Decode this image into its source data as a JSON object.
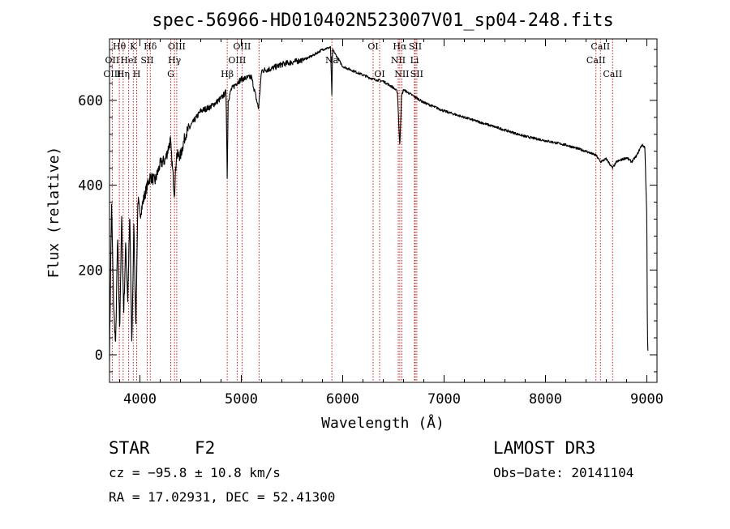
{
  "chart_data": {
    "type": "line",
    "title": "spec-56966-HD010402N523007V01_sp04-248.fits",
    "xlabel": "Wavelength (Å)",
    "ylabel": "Flux (relative)",
    "xlim": [
      3700,
      9100
    ],
    "ylim": [
      -65,
      745
    ],
    "xticks": [
      "4000",
      "5000",
      "6000",
      "7000",
      "8000",
      "9000"
    ],
    "xtick_values": [
      4000,
      5000,
      6000,
      7000,
      8000,
      9000
    ],
    "yticks": [
      "0",
      "200",
      "400",
      "600"
    ],
    "ytick_values": [
      0,
      200,
      400,
      600
    ],
    "series": [
      {
        "name": "flux",
        "x": [
          3700,
          3720,
          3740,
          3760,
          3780,
          3800,
          3820,
          3840,
          3860,
          3880,
          3900,
          3920,
          3940,
          3960,
          3980,
          4000,
          4050,
          4100,
          4150,
          4200,
          4250,
          4300,
          4340,
          4360,
          4400,
          4450,
          4500,
          4600,
          4700,
          4800,
          4850,
          4861,
          4870,
          4900,
          4950,
          5000,
          5100,
          5170,
          5200,
          5300,
          5400,
          5500,
          5600,
          5700,
          5800,
          5880,
          5893,
          5900,
          5950,
          6000,
          6100,
          6200,
          6300,
          6400,
          6500,
          6540,
          6563,
          6580,
          6600,
          6700,
          6800,
          6900,
          7000,
          7200,
          7400,
          7600,
          7800,
          8000,
          8200,
          8400,
          8500,
          8542,
          8600,
          8662,
          8700,
          8800,
          8850,
          8900,
          8950,
          8980,
          9000,
          9005,
          9010
        ],
        "y": [
          0,
          360,
          120,
          20,
          280,
          60,
          320,
          100,
          260,
          130,
          330,
          20,
          300,
          70,
          370,
          330,
          380,
          420,
          410,
          450,
          460,
          505,
          380,
          470,
          470,
          520,
          540,
          575,
          585,
          605,
          620,
          415,
          600,
          625,
          640,
          650,
          655,
          580,
          670,
          675,
          685,
          690,
          695,
          705,
          720,
          725,
          610,
          720,
          700,
          680,
          670,
          660,
          650,
          645,
          630,
          620,
          490,
          610,
          625,
          610,
          595,
          585,
          575,
          560,
          545,
          530,
          515,
          505,
          495,
          480,
          470,
          455,
          462,
          440,
          455,
          465,
          455,
          470,
          495,
          490,
          320,
          50,
          10
        ]
      }
    ],
    "spectral_lines": [
      {
        "label": "Hθ",
        "wl": 3797,
        "row": 1
      },
      {
        "label": "OII",
        "wl": 3727,
        "row": 2
      },
      {
        "label": "OIII",
        "wl": 3727,
        "row": 3
      },
      {
        "label": "K",
        "wl": 3934,
        "row": 1
      },
      {
        "label": "HeI",
        "wl": 3889,
        "row": 2
      },
      {
        "label": "Hη",
        "wl": 3835,
        "row": 3
      },
      {
        "label": "SII",
        "wl": 4072,
        "row": 2
      },
      {
        "label": "H",
        "wl": 3968,
        "row": 3
      },
      {
        "label": "Hδ",
        "wl": 4102,
        "row": 1
      },
      {
        "label": "OIII",
        "wl": 4363,
        "row": 1
      },
      {
        "label": "Hγ",
        "wl": 4341,
        "row": 2
      },
      {
        "label": "G",
        "wl": 4304,
        "row": 3
      },
      {
        "label": "OIII",
        "wl": 5007,
        "row": 1
      },
      {
        "label": "OIII",
        "wl": 4959,
        "row": 2
      },
      {
        "label": "Hβ",
        "wl": 4861,
        "row": 3
      },
      {
        "label": "Na",
        "wl": 5893,
        "row": 2
      },
      {
        "label": "OI",
        "wl": 6300,
        "row": 1
      },
      {
        "label": "OI",
        "wl": 6364,
        "row": 3
      },
      {
        "label": "Hα",
        "wl": 6563,
        "row": 1
      },
      {
        "label": "NII",
        "wl": 6548,
        "row": 2
      },
      {
        "label": "NII",
        "wl": 6583,
        "row": 3
      },
      {
        "label": "SII",
        "wl": 6716,
        "row": 1
      },
      {
        "label": "Li",
        "wl": 6708,
        "row": 2
      },
      {
        "label": "SII",
        "wl": 6731,
        "row": 3
      },
      {
        "label": "CaII",
        "wl": 8542,
        "row": 1
      },
      {
        "label": "CaII",
        "wl": 8498,
        "row": 2
      },
      {
        "label": "CaII",
        "wl": 8662,
        "row": 3
      }
    ],
    "extra_line_markers": [
      5175,
      8498,
      8542,
      8662
    ]
  },
  "info": {
    "object_type": "STAR",
    "subclass": "F2",
    "survey": "LAMOST DR3",
    "cz": "cz = −95.8 ± 10.8 km/s",
    "obs_date": "Obs−Date: 20141104",
    "coords": "RA =  17.02931, DEC =  52.41300"
  },
  "colors": {
    "line": "#000000",
    "marker": "#cc0000",
    "axis": "#000000"
  }
}
